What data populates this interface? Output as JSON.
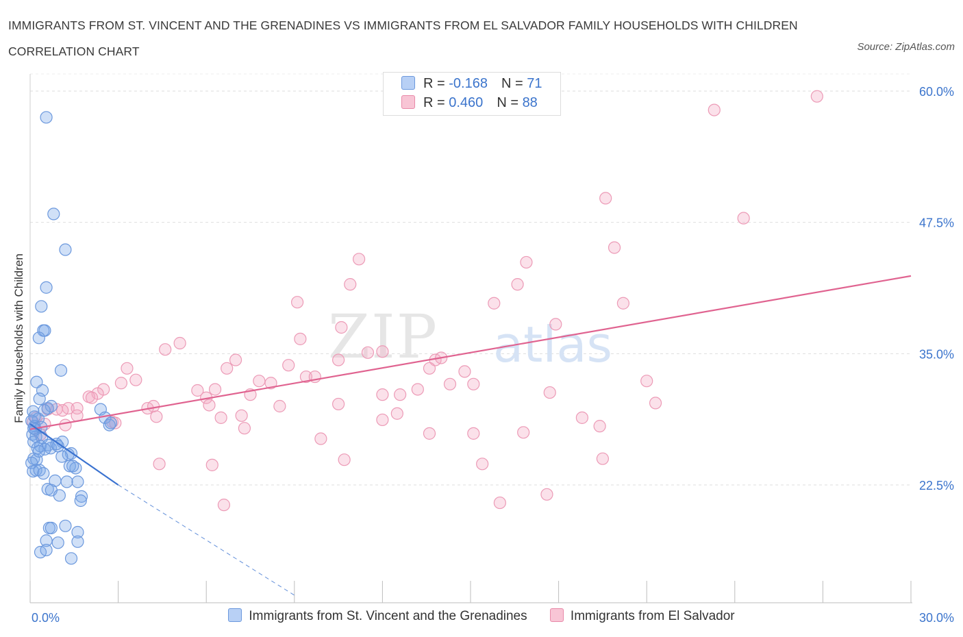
{
  "header": {
    "title": "IMMIGRANTS FROM ST. VINCENT AND THE GRENADINES VS IMMIGRANTS FROM EL SALVADOR FAMILY HOUSEHOLDS WITH CHILDREN CORRELATION CHART",
    "source": "Source: ZipAtlas.com"
  },
  "legend": {
    "rows": [
      {
        "r_label": "R = ",
        "r_value": "-0.168",
        "n_label": "N = ",
        "n_value": "71"
      },
      {
        "r_label": "R = ",
        "r_value": "0.460",
        "n_label": "N = ",
        "n_value": "88"
      }
    ]
  },
  "watermark": {
    "part1": "ZIP",
    "part2": "atlas"
  },
  "chart_data": {
    "type": "scatter",
    "title": "IMMIGRANTS FROM ST. VINCENT AND THE GRENADINES VS IMMIGRANTS FROM EL SALVADOR FAMILY HOUSEHOLDS WITH CHILDREN CORRELATION CHART",
    "xlabel": "",
    "ylabel": "Family Households with Children",
    "xlim": [
      0,
      30
    ],
    "ylim": [
      12,
      62
    ],
    "x_tick_labels": [
      "0.0%",
      "30.0%"
    ],
    "y_ticks": [
      22.5,
      35.0,
      47.5,
      60.0
    ],
    "y_tick_labels": [
      "22.5%",
      "35.0%",
      "47.5%",
      "60.0%"
    ],
    "grid": true,
    "legend_position": "bottom",
    "colors": {
      "blue": "#5b8fe0",
      "pink": "#e87fa3",
      "blue_line": "#3a72d0",
      "pink_line": "#e06390",
      "axis_label": "#3b74cc"
    },
    "series": [
      {
        "name": "Immigrants from St. Vincent and the Grenadines",
        "color": "blue",
        "R": -0.168,
        "N": 71,
        "trend": {
          "x0": 0.0,
          "y0": 28.3,
          "x1": 3.0,
          "y1": 22.5,
          "dash_to_x": 9.0,
          "dash_to_y": 12.0
        },
        "points": [
          [
            0.55,
            57.5
          ],
          [
            0.8,
            48.3
          ],
          [
            1.2,
            44.9
          ],
          [
            0.55,
            41.3
          ],
          [
            0.38,
            39.5
          ],
          [
            0.45,
            37.2
          ],
          [
            0.5,
            37.2
          ],
          [
            0.3,
            36.5
          ],
          [
            1.05,
            33.4
          ],
          [
            0.22,
            32.3
          ],
          [
            0.42,
            31.5
          ],
          [
            0.32,
            30.7
          ],
          [
            0.1,
            29.5
          ],
          [
            0.28,
            28.8
          ],
          [
            0.6,
            29.8
          ],
          [
            0.72,
            30.0
          ],
          [
            0.05,
            28.6
          ],
          [
            0.15,
            28.1
          ],
          [
            0.08,
            27.3
          ],
          [
            0.2,
            27.1
          ],
          [
            0.4,
            27.0
          ],
          [
            0.12,
            26.6
          ],
          [
            0.35,
            26.2
          ],
          [
            0.62,
            26.3
          ],
          [
            0.7,
            26.0
          ],
          [
            0.5,
            25.9
          ],
          [
            1.1,
            26.6
          ],
          [
            0.95,
            26.2
          ],
          [
            1.4,
            25.5
          ],
          [
            1.3,
            25.4
          ],
          [
            1.08,
            25.2
          ],
          [
            0.12,
            25.0
          ],
          [
            0.22,
            24.9
          ],
          [
            0.05,
            24.6
          ],
          [
            0.2,
            23.9
          ],
          [
            0.1,
            23.8
          ],
          [
            0.32,
            23.9
          ],
          [
            0.45,
            23.6
          ],
          [
            1.35,
            24.3
          ],
          [
            1.55,
            24.1
          ],
          [
            0.85,
            22.9
          ],
          [
            1.25,
            22.8
          ],
          [
            1.62,
            22.8
          ],
          [
            0.6,
            22.1
          ],
          [
            0.72,
            22.0
          ],
          [
            1.0,
            21.5
          ],
          [
            1.75,
            21.4
          ],
          [
            1.72,
            21.0
          ],
          [
            0.65,
            18.4
          ],
          [
            0.72,
            18.4
          ],
          [
            1.2,
            18.6
          ],
          [
            1.62,
            18.0
          ],
          [
            0.55,
            17.2
          ],
          [
            0.95,
            17.0
          ],
          [
            1.62,
            17.1
          ],
          [
            0.35,
            16.1
          ],
          [
            0.55,
            16.3
          ],
          [
            1.4,
            15.5
          ],
          [
            2.4,
            29.7
          ],
          [
            2.55,
            28.9
          ],
          [
            2.7,
            28.2
          ],
          [
            2.75,
            28.4
          ],
          [
            0.18,
            27.8
          ],
          [
            0.38,
            28.0
          ],
          [
            0.25,
            26.0
          ],
          [
            0.48,
            29.6
          ],
          [
            0.9,
            26.4
          ],
          [
            1.45,
            24.3
          ],
          [
            0.3,
            25.7
          ],
          [
            0.12,
            27.9
          ],
          [
            0.15,
            29.0
          ]
        ]
      },
      {
        "name": "Immigrants from El Salvador",
        "color": "pink",
        "R": 0.46,
        "N": 88,
        "trend": {
          "x0": 0.0,
          "y0": 27.8,
          "x1": 30.0,
          "y1": 42.4
        },
        "points": [
          [
            26.8,
            59.5
          ],
          [
            23.3,
            58.2
          ],
          [
            19.6,
            49.8
          ],
          [
            24.3,
            47.9
          ],
          [
            19.9,
            45.1
          ],
          [
            11.2,
            44.0
          ],
          [
            16.9,
            43.7
          ],
          [
            10.9,
            41.6
          ],
          [
            16.6,
            41.6
          ],
          [
            9.1,
            39.9
          ],
          [
            15.8,
            39.8
          ],
          [
            20.2,
            39.8
          ],
          [
            10.6,
            37.5
          ],
          [
            17.9,
            37.8
          ],
          [
            9.2,
            36.4
          ],
          [
            5.1,
            36.0
          ],
          [
            4.6,
            35.4
          ],
          [
            11.5,
            35.1
          ],
          [
            12.0,
            35.2
          ],
          [
            13.8,
            34.4
          ],
          [
            14.0,
            34.6
          ],
          [
            7.0,
            34.4
          ],
          [
            10.5,
            34.4
          ],
          [
            8.8,
            33.9
          ],
          [
            6.7,
            33.6
          ],
          [
            3.3,
            33.6
          ],
          [
            13.6,
            33.6
          ],
          [
            3.6,
            32.5
          ],
          [
            9.4,
            32.8
          ],
          [
            9.7,
            32.8
          ],
          [
            14.8,
            33.3
          ],
          [
            7.8,
            32.4
          ],
          [
            8.2,
            32.2
          ],
          [
            3.1,
            32.2
          ],
          [
            14.3,
            32.1
          ],
          [
            15.1,
            32.1
          ],
          [
            2.5,
            31.6
          ],
          [
            2.3,
            31.2
          ],
          [
            5.7,
            31.5
          ],
          [
            6.0,
            30.8
          ],
          [
            6.3,
            31.6
          ],
          [
            7.5,
            31.1
          ],
          [
            12.0,
            31.1
          ],
          [
            12.6,
            31.1
          ],
          [
            13.2,
            31.6
          ],
          [
            17.7,
            31.3
          ],
          [
            21.0,
            32.4
          ],
          [
            2.0,
            30.9
          ],
          [
            2.1,
            30.8
          ],
          [
            6.1,
            30.1
          ],
          [
            1.3,
            29.8
          ],
          [
            1.6,
            29.8
          ],
          [
            4.0,
            29.8
          ],
          [
            4.2,
            30.0
          ],
          [
            8.5,
            30.0
          ],
          [
            10.5,
            30.2
          ],
          [
            21.3,
            30.3
          ],
          [
            0.9,
            29.7
          ],
          [
            0.6,
            29.7
          ],
          [
            1.1,
            29.6
          ],
          [
            1.6,
            29.1
          ],
          [
            4.3,
            29.0
          ],
          [
            6.5,
            28.9
          ],
          [
            7.2,
            29.1
          ],
          [
            12.0,
            28.7
          ],
          [
            12.5,
            29.3
          ],
          [
            18.8,
            28.9
          ],
          [
            2.8,
            28.5
          ],
          [
            2.9,
            28.4
          ],
          [
            0.5,
            28.3
          ],
          [
            1.2,
            28.2
          ],
          [
            19.4,
            28.1
          ],
          [
            7.3,
            27.9
          ],
          [
            13.6,
            27.4
          ],
          [
            15.1,
            27.4
          ],
          [
            16.8,
            27.5
          ],
          [
            0.2,
            28.9
          ],
          [
            0.35,
            27.3
          ],
          [
            9.9,
            26.9
          ],
          [
            4.4,
            24.5
          ],
          [
            6.2,
            24.4
          ],
          [
            10.7,
            24.9
          ],
          [
            15.4,
            24.5
          ],
          [
            19.5,
            25.0
          ],
          [
            6.6,
            20.6
          ],
          [
            16.0,
            20.8
          ],
          [
            17.6,
            21.6
          ],
          [
            0.1,
            28.5
          ]
        ]
      }
    ]
  },
  "bottom_legend": {
    "items": [
      {
        "label": "Immigrants from St. Vincent and the Grenadines"
      },
      {
        "label": "Immigrants from El Salvador"
      }
    ]
  }
}
